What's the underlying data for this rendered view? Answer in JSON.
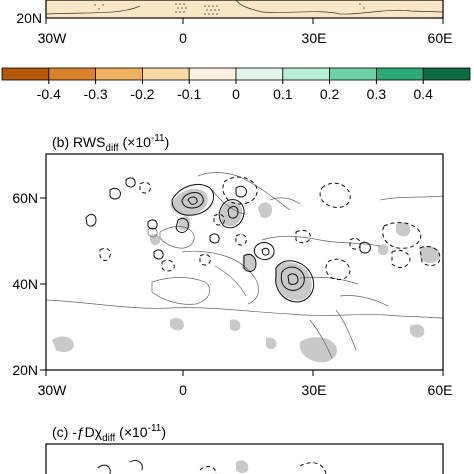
{
  "chart_data": [
    {
      "type": "heatmap",
      "panel": "top (partial)",
      "title": "",
      "xlim": [
        -30,
        60
      ],
      "ylim": [
        20,
        70
      ],
      "x_ticks": [
        {
          "value": -30,
          "label": "30W"
        },
        {
          "value": 0,
          "label": "0"
        },
        {
          "value": 30,
          "label": "30E"
        },
        {
          "value": 60,
          "label": "60E"
        }
      ],
      "y_ticks": [
        {
          "value": 20,
          "label": "20N"
        }
      ],
      "stippling": "significant regions dotted",
      "background_color": "#fbe7c6"
    },
    {
      "type": "colorbar",
      "values": [
        -0.4,
        -0.3,
        -0.2,
        -0.1,
        0,
        0.1,
        0.2,
        0.3,
        0.4
      ],
      "tick_labels": [
        "-0.4",
        "-0.3",
        "-0.2",
        "-0.1",
        "0",
        "0.1",
        "0.2",
        "0.3",
        "0.4"
      ],
      "colors": [
        "#b35806",
        "#d8822b",
        "#eeb160",
        "#f7d9a6",
        "#fcf1e0",
        "#e1f5ec",
        "#b9ecd5",
        "#6dd3a4",
        "#2ea874",
        "#0e6b3f"
      ],
      "orientation": "horizontal"
    },
    {
      "type": "heatmap",
      "panel": "(b)",
      "title": {
        "prefix": "(b) RWS",
        "sub": "diff",
        "units_pre": " (×10",
        "sup": "-11",
        "units_post": ")"
      },
      "xlim": [
        -30,
        60
      ],
      "ylim": [
        20,
        70
      ],
      "x_ticks": [
        {
          "value": -30,
          "label": "30W"
        },
        {
          "value": 0,
          "label": "0"
        },
        {
          "value": 30,
          "label": "30E"
        },
        {
          "value": 60,
          "label": "60E"
        }
      ],
      "y_ticks": [
        {
          "value": 60,
          "label": "60N"
        },
        {
          "value": 40,
          "label": "40N"
        },
        {
          "value": 20,
          "label": "20N"
        }
      ],
      "contours": "solid = positive, dashed = negative",
      "shading": "gray = significant"
    },
    {
      "type": "heatmap",
      "panel": "(c)",
      "title": {
        "prefix": "(c) -ƒDχ",
        "sub": "diff",
        "units_pre": " (×10",
        "sup": "-11",
        "units_post": ")"
      },
      "xlim": [
        -30,
        60
      ],
      "ylim": [
        20,
        70
      ]
    }
  ]
}
